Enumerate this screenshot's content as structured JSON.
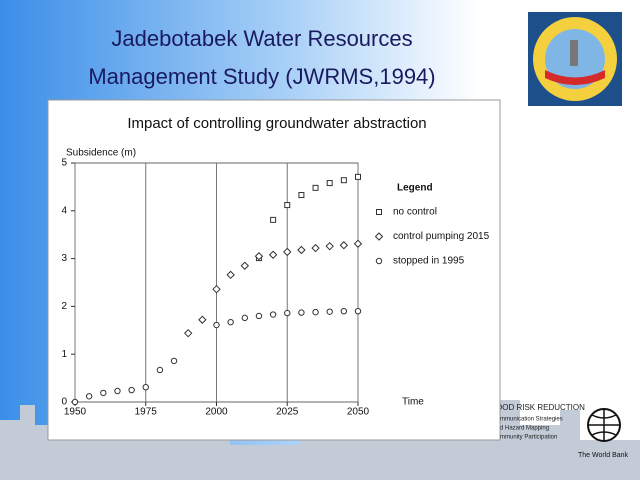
{
  "slide": {
    "title_lines": [
      "Jadebotabek Water Resources",
      "Management Study (JWRMS,1994)"
    ],
    "footer_lines": [
      "OOD RISK REDUCTION",
      "mmunication Strategies",
      "d Hazard Mapping",
      "mmunity Participation"
    ],
    "bank": "The World Bank"
  },
  "chart_data": {
    "type": "scatter",
    "title": "Impact of controlling groundwater abstraction",
    "y_label": "Subsidence (m)",
    "x_label": "Time",
    "legend_title": "Legend",
    "legend": "right",
    "xlim": [
      1950,
      2050
    ],
    "xticks": [
      1950,
      1975,
      2000,
      2025,
      2050
    ],
    "ylim": [
      0,
      5
    ],
    "yticks": [
      0,
      1,
      2,
      3,
      4,
      5
    ],
    "grid": "x",
    "series": [
      {
        "name": "no control",
        "marker": "square",
        "color": "#333333",
        "x": [
          2015,
          2020,
          2025,
          2030,
          2035,
          2040,
          2045,
          2050
        ],
        "values": [
          3.01,
          3.81,
          4.12,
          4.33,
          4.48,
          4.58,
          4.64,
          4.71
        ]
      },
      {
        "name": "control pumping 2015",
        "marker": "diamond",
        "color": "#333333",
        "x": [
          1990,
          1995,
          2000,
          2005,
          2010,
          2015,
          2020,
          2025,
          2030,
          2035,
          2040,
          2045,
          2050
        ],
        "values": [
          1.44,
          1.72,
          2.36,
          2.66,
          2.85,
          3.05,
          3.08,
          3.14,
          3.18,
          3.22,
          3.26,
          3.28,
          3.31
        ]
      },
      {
        "name": "stopped in 1995",
        "marker": "circle",
        "color": "#333333",
        "x": [
          1950,
          1955,
          1960,
          1965,
          1970,
          1975,
          1980,
          1985,
          2000,
          2005,
          2010,
          2015,
          2020,
          2025,
          2030,
          2035,
          2040,
          2045,
          2050
        ],
        "values": [
          0,
          0.12,
          0.19,
          0.23,
          0.25,
          0.31,
          0.67,
          0.86,
          1.61,
          1.67,
          1.76,
          1.8,
          1.83,
          1.86,
          1.87,
          1.88,
          1.89,
          1.9,
          1.9
        ]
      }
    ]
  }
}
